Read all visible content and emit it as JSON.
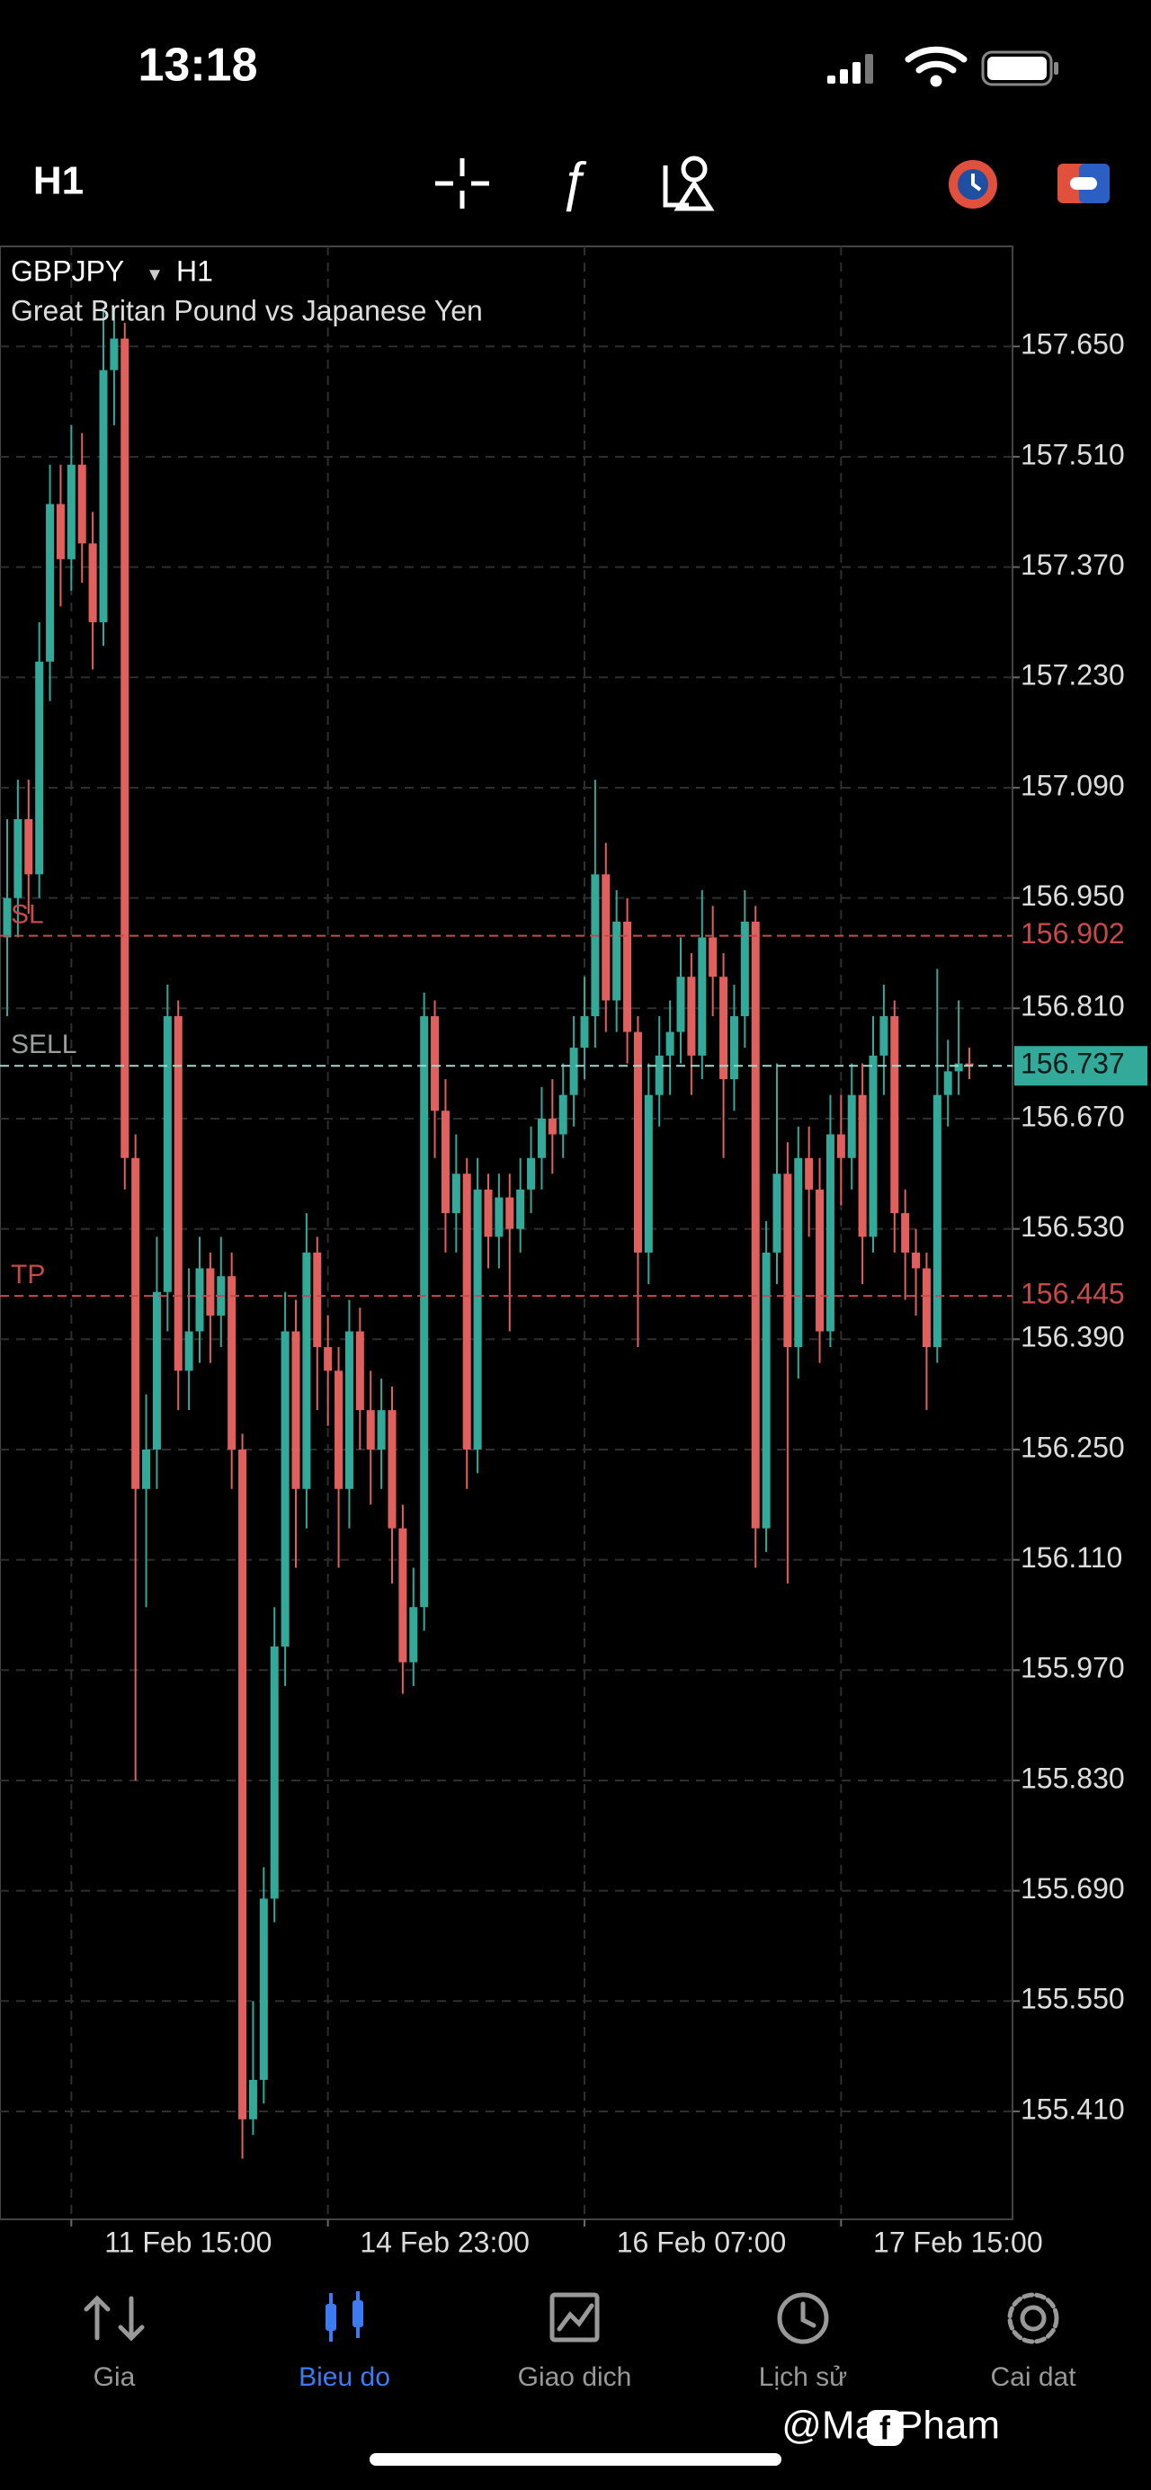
{
  "status_bar": {
    "time": "13:18"
  },
  "toolbar": {
    "timeframe": "H1"
  },
  "chart_header": {
    "symbol": "GBPJPY",
    "caret": "▾",
    "timeframe": "H1",
    "description": "Great Britan Pound vs Japanese Yen"
  },
  "chart_data": {
    "type": "candlestick",
    "categories": [
      null,
      null,
      null,
      null,
      null,
      null,
      "11 Feb 15:00",
      null,
      null,
      null,
      null,
      null,
      null,
      null,
      null,
      null,
      null,
      null,
      null,
      null,
      null,
      null,
      null,
      null,
      null,
      null,
      null,
      null,
      null,
      null,
      "14 Feb 23:00",
      null,
      null,
      null,
      null,
      null,
      null,
      null,
      null,
      null,
      null,
      null,
      null,
      null,
      null,
      null,
      null,
      null,
      null,
      null,
      null,
      null,
      null,
      null,
      "16 Feb 07:00",
      null,
      null,
      null,
      null,
      null,
      null,
      null,
      null,
      null,
      null,
      null,
      null,
      null,
      null,
      null,
      null,
      null,
      null,
      null,
      null,
      null,
      null,
      null,
      "17 Feb 15:00",
      null,
      null,
      null,
      null,
      null,
      null,
      null,
      null,
      null,
      null,
      null,
      null
    ],
    "open": [
      156.9,
      156.95,
      157.05,
      156.98,
      157.25,
      157.45,
      157.38,
      157.5,
      157.4,
      157.3,
      157.62,
      157.66,
      156.62,
      156.2,
      156.25,
      156.45,
      156.8,
      156.35,
      156.4,
      156.48,
      156.42,
      156.47,
      156.25,
      155.4,
      155.45,
      155.68,
      156.0,
      156.4,
      156.2,
      156.5,
      156.38,
      156.35,
      156.2,
      156.4,
      156.3,
      156.25,
      156.3,
      156.15,
      155.98,
      156.05,
      156.8,
      156.68,
      156.55,
      156.6,
      156.25,
      156.58,
      156.52,
      156.57,
      156.53,
      156.58,
      156.62,
      156.67,
      156.65,
      156.7,
      156.76,
      156.8,
      156.98,
      156.82,
      156.92,
      156.78,
      156.5,
      156.7,
      156.75,
      156.78,
      156.85,
      156.75,
      156.9,
      156.85,
      156.72,
      156.8,
      156.92,
      156.15,
      156.5,
      156.6,
      156.38,
      156.62,
      156.58,
      156.4,
      156.65,
      156.62,
      156.7,
      156.52,
      156.75,
      156.8,
      156.55,
      156.5,
      156.48,
      156.38,
      156.7,
      156.73,
      156.74
    ],
    "high": [
      157.05,
      157.1,
      157.1,
      157.3,
      157.5,
      157.5,
      157.55,
      157.54,
      157.44,
      157.7,
      157.7,
      157.68,
      156.65,
      156.32,
      156.52,
      156.84,
      156.82,
      156.48,
      156.52,
      156.5,
      156.52,
      156.5,
      156.27,
      155.55,
      155.72,
      156.05,
      156.45,
      156.44,
      156.55,
      156.52,
      156.42,
      156.38,
      156.44,
      156.43,
      156.35,
      156.34,
      156.33,
      156.18,
      156.1,
      156.83,
      156.82,
      156.72,
      156.65,
      156.62,
      156.62,
      156.6,
      156.6,
      156.6,
      156.62,
      156.66,
      156.71,
      156.72,
      156.74,
      156.8,
      156.85,
      157.1,
      157.02,
      156.96,
      156.95,
      156.8,
      156.74,
      156.8,
      156.82,
      156.9,
      156.88,
      156.96,
      156.94,
      156.88,
      156.84,
      156.96,
      156.94,
      156.54,
      156.74,
      156.64,
      156.66,
      156.66,
      156.62,
      156.7,
      156.7,
      156.74,
      156.74,
      156.8,
      156.84,
      156.82,
      156.58,
      156.53,
      156.5,
      156.86,
      156.77,
      156.82,
      156.76
    ],
    "low": [
      156.8,
      156.9,
      156.93,
      156.95,
      157.2,
      157.32,
      157.34,
      157.35,
      157.24,
      157.27,
      157.55,
      156.58,
      155.83,
      156.05,
      156.2,
      156.4,
      156.3,
      156.3,
      156.36,
      156.36,
      156.38,
      156.2,
      155.35,
      155.38,
      155.42,
      155.65,
      155.95,
      156.1,
      156.15,
      156.3,
      156.28,
      156.1,
      156.15,
      156.25,
      156.18,
      156.2,
      156.08,
      155.94,
      155.95,
      156.02,
      156.62,
      156.5,
      156.5,
      156.2,
      156.22,
      156.48,
      156.48,
      156.4,
      156.5,
      156.55,
      156.58,
      156.6,
      156.62,
      156.66,
      156.72,
      156.76,
      156.78,
      156.78,
      156.74,
      156.38,
      156.46,
      156.66,
      156.7,
      156.74,
      156.7,
      156.72,
      156.8,
      156.62,
      156.68,
      156.76,
      156.1,
      156.12,
      156.46,
      156.08,
      156.34,
      156.52,
      156.36,
      156.38,
      156.56,
      156.58,
      156.46,
      156.5,
      156.7,
      156.5,
      156.44,
      156.42,
      156.3,
      156.36,
      156.66,
      156.7,
      156.72
    ],
    "close": [
      156.95,
      157.05,
      156.98,
      157.25,
      157.45,
      157.38,
      157.5,
      157.4,
      157.3,
      157.62,
      157.66,
      156.62,
      156.2,
      156.25,
      156.45,
      156.8,
      156.35,
      156.4,
      156.48,
      156.42,
      156.47,
      156.25,
      155.4,
      155.45,
      155.68,
      156.0,
      156.4,
      156.2,
      156.5,
      156.38,
      156.35,
      156.2,
      156.4,
      156.3,
      156.25,
      156.3,
      156.15,
      155.98,
      156.05,
      156.8,
      156.68,
      156.55,
      156.6,
      156.25,
      156.58,
      156.52,
      156.57,
      156.53,
      156.58,
      156.62,
      156.67,
      156.65,
      156.7,
      156.76,
      156.8,
      156.98,
      156.82,
      156.92,
      156.78,
      156.5,
      156.7,
      156.75,
      156.78,
      156.85,
      156.75,
      156.9,
      156.85,
      156.72,
      156.8,
      156.92,
      156.15,
      156.5,
      156.6,
      156.38,
      156.62,
      156.58,
      156.4,
      156.65,
      156.62,
      156.7,
      156.52,
      156.75,
      156.8,
      156.55,
      156.5,
      156.48,
      156.38,
      156.7,
      156.73,
      156.74,
      156.737
    ],
    "up_color": "#33a99a",
    "down_color": "#e0605e",
    "ylim": [
      155.273,
      157.777
    ],
    "yticks": [
      {
        "value": 157.65,
        "label": "157.650"
      },
      {
        "value": 157.51,
        "label": "157.510"
      },
      {
        "value": 157.37,
        "label": "157.370"
      },
      {
        "value": 157.23,
        "label": "157.230"
      },
      {
        "value": 157.09,
        "label": "157.090"
      },
      {
        "value": 156.95,
        "label": "156.950"
      },
      {
        "value": 156.81,
        "label": "156.810"
      },
      {
        "value": 156.67,
        "label": "156.670"
      },
      {
        "value": 156.53,
        "label": "156.530"
      },
      {
        "value": 156.39,
        "label": "156.390"
      },
      {
        "value": 156.25,
        "label": "156.250"
      },
      {
        "value": 156.11,
        "label": "156.110"
      },
      {
        "value": 155.97,
        "label": "155.970"
      },
      {
        "value": 155.83,
        "label": "155.830"
      },
      {
        "value": 155.69,
        "label": "155.690"
      },
      {
        "value": 155.55,
        "label": "155.550"
      },
      {
        "value": 155.41,
        "label": "155.410"
      }
    ],
    "grid": true,
    "levels": [
      {
        "name": "SL",
        "value": 156.902,
        "color": "#c84a48"
      },
      {
        "name": "SELL",
        "value": 156.737,
        "color": "#9aa0a0"
      },
      {
        "name": "TP",
        "value": 156.445,
        "color": "#c84a48"
      }
    ]
  },
  "nav": {
    "items": [
      "Gia",
      "Bieu do",
      "Giao dich",
      "Lịch sử",
      "Cai dat"
    ],
    "active": 1
  },
  "watermark": "@MaxPham"
}
